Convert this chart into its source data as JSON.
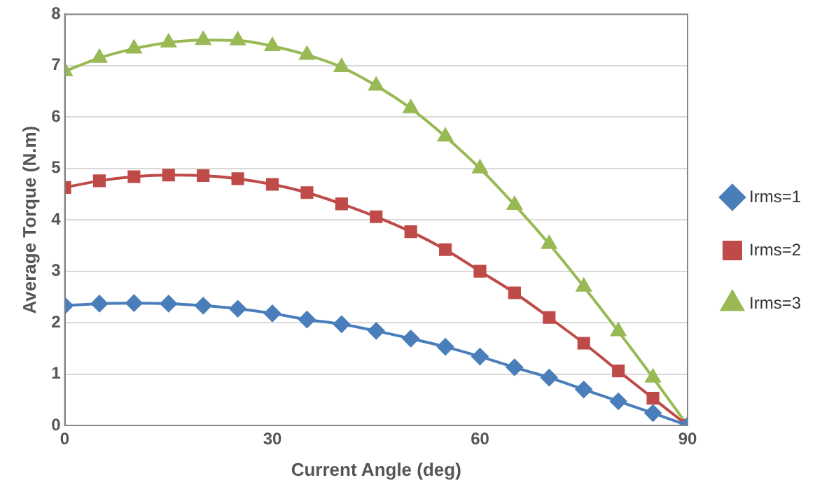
{
  "chart_data": {
    "type": "line",
    "xlabel": "Current Angle (deg)",
    "ylabel": "Average Torque (N.m)",
    "x": [
      0,
      5,
      10,
      15,
      20,
      25,
      30,
      35,
      40,
      45,
      50,
      55,
      60,
      65,
      70,
      75,
      80,
      85,
      90
    ],
    "series": [
      {
        "name": "Irms=1",
        "color": "#4a7ebb",
        "marker": "diamond",
        "values": [
          2.33,
          2.37,
          2.38,
          2.37,
          2.33,
          2.27,
          2.18,
          2.06,
          1.97,
          1.84,
          1.69,
          1.53,
          1.34,
          1.13,
          0.93,
          0.7,
          0.47,
          0.24,
          0
        ]
      },
      {
        "name": "Irms=2",
        "color": "#be4b48",
        "marker": "square",
        "values": [
          4.63,
          4.76,
          4.84,
          4.87,
          4.86,
          4.8,
          4.69,
          4.53,
          4.31,
          4.06,
          3.77,
          3.42,
          3.0,
          2.58,
          2.1,
          1.6,
          1.06,
          0.53,
          0
        ]
      },
      {
        "name": "Irms=3",
        "color": "#98b954",
        "marker": "triangle",
        "values": [
          6.89,
          7.15,
          7.33,
          7.45,
          7.5,
          7.49,
          7.38,
          7.21,
          6.97,
          6.61,
          6.17,
          5.62,
          5.0,
          4.29,
          3.53,
          2.7,
          1.83,
          0.93,
          0
        ]
      }
    ],
    "xlim": [
      0,
      90
    ],
    "xticks": [
      0,
      30,
      60,
      90
    ],
    "ylim": [
      0,
      8
    ],
    "yticks": [
      0,
      1,
      2,
      3,
      4,
      5,
      6,
      7,
      8
    ],
    "grid": "y",
    "legend": "right",
    "line_style": "solid"
  }
}
